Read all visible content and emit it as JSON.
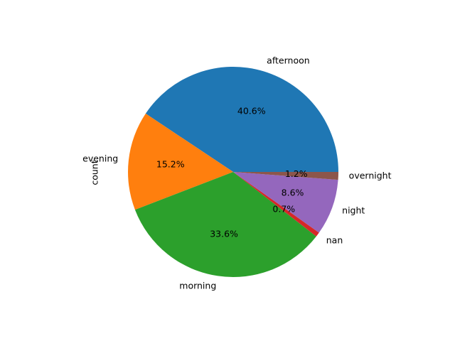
{
  "chart_data": {
    "type": "pie",
    "ylabel": "count",
    "start_angle_deg": 0,
    "direction": "counterclockwise",
    "slices": [
      {
        "label": "afternoon",
        "percent": 40.6,
        "percent_label": "40.6%",
        "color": "#1f77b4"
      },
      {
        "label": "evening",
        "percent": 15.2,
        "percent_label": "15.2%",
        "color": "#ff7f0e"
      },
      {
        "label": "morning",
        "percent": 33.6,
        "percent_label": "33.6%",
        "color": "#2ca02c"
      },
      {
        "label": "nan",
        "percent": 0.7,
        "percent_label": "0.7%",
        "color": "#d62728"
      },
      {
        "label": "night",
        "percent": 8.6,
        "percent_label": "8.6%",
        "color": "#9467bd"
      },
      {
        "label": "overnight",
        "percent": 1.2,
        "percent_label": "1.2%",
        "color": "#8c564b"
      }
    ]
  }
}
